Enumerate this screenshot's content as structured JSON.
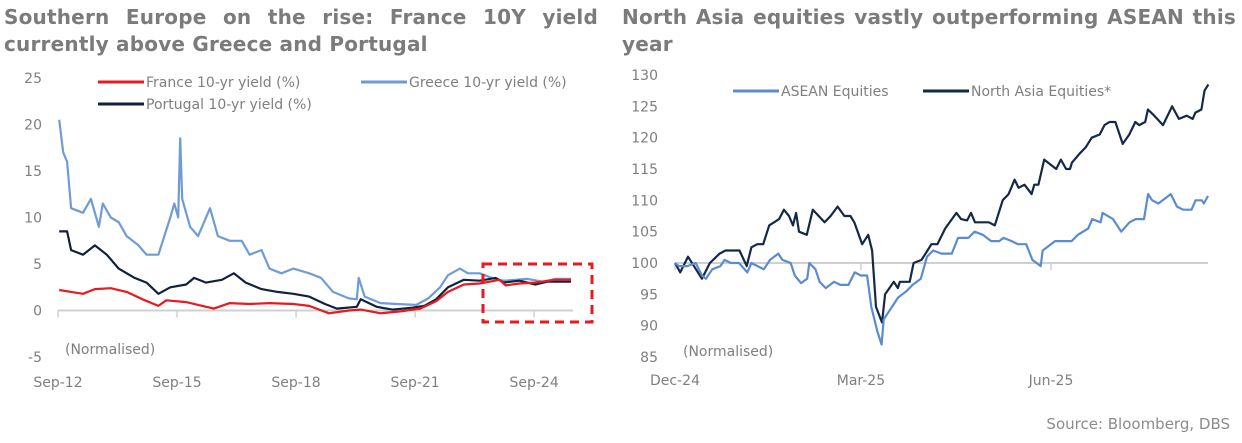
{
  "source": "Source: Bloomberg, DBS",
  "chart_data": [
    {
      "type": "line",
      "title": "Southern Europe on the rise: France 10Y yield currently above Greece and Portugal",
      "annotation": "(Normalised)",
      "highlight": "dashed red box around Sep-23 to latest",
      "ylim": [
        -5,
        25
      ],
      "yticks": [
        -5,
        0,
        5,
        10,
        15,
        20,
        25
      ],
      "xlim": [
        2012.67,
        2025.65
      ],
      "xticks": [
        {
          "v": 2012.67,
          "label": "Sep-12"
        },
        {
          "v": 2015.67,
          "label": "Sep-15"
        },
        {
          "v": 2018.67,
          "label": "Sep-18"
        },
        {
          "v": 2021.67,
          "label": "Sep-21"
        },
        {
          "v": 2024.67,
          "label": "Sep-24"
        }
      ],
      "legend_position": "top",
      "series": [
        {
          "name": "France 10-yr yield (%)",
          "color": "#e8191f",
          "x": [
            2012.7,
            2013.0,
            2013.3,
            2013.6,
            2014.0,
            2014.4,
            2014.8,
            2015.2,
            2015.4,
            2015.9,
            2016.2,
            2016.6,
            2017.0,
            2017.5,
            2018.0,
            2018.6,
            2019.0,
            2019.5,
            2020.0,
            2020.3,
            2020.8,
            2021.3,
            2021.8,
            2022.2,
            2022.5,
            2022.9,
            2023.3,
            2023.8,
            2023.95,
            2024.3,
            2024.7,
            2025.2,
            2025.6
          ],
          "y": [
            2.2,
            2.0,
            1.8,
            2.3,
            2.4,
            2.0,
            1.2,
            0.5,
            1.1,
            0.9,
            0.6,
            0.2,
            0.8,
            0.7,
            0.8,
            0.7,
            0.5,
            -0.3,
            0.0,
            0.1,
            -0.3,
            -0.1,
            0.2,
            1.0,
            2.0,
            2.8,
            2.9,
            3.3,
            2.7,
            2.9,
            3.0,
            3.3,
            3.3
          ]
        },
        {
          "name": "Greece 10-yr yield (%)",
          "color": "#6f9bd6",
          "x": [
            2012.7,
            2012.8,
            2012.9,
            2013.0,
            2013.3,
            2013.5,
            2013.7,
            2013.8,
            2014.0,
            2014.2,
            2014.4,
            2014.7,
            2014.9,
            2015.2,
            2015.5,
            2015.6,
            2015.7,
            2015.75,
            2015.8,
            2016.0,
            2016.2,
            2016.5,
            2016.7,
            2017.0,
            2017.3,
            2017.5,
            2017.8,
            2018.0,
            2018.3,
            2018.6,
            2019.0,
            2019.3,
            2019.6,
            2020.0,
            2020.2,
            2020.25,
            2020.4,
            2020.8,
            2021.2,
            2021.7,
            2022.0,
            2022.3,
            2022.5,
            2022.8,
            2023.0,
            2023.3,
            2023.6,
            2023.9,
            2024.2,
            2024.5,
            2024.9,
            2025.2,
            2025.6
          ],
          "y": [
            20.5,
            17,
            16,
            11,
            10.5,
            12,
            9,
            11.5,
            10,
            9.5,
            8,
            7,
            6,
            6,
            10,
            11.5,
            10,
            18.5,
            12,
            9,
            8,
            11,
            8,
            7.5,
            7.5,
            6,
            6.5,
            4.5,
            4,
            4.5,
            4,
            3.5,
            2,
            1.3,
            1.2,
            3.5,
            1.5,
            0.8,
            0.7,
            0.6,
            1.3,
            2.5,
            3.8,
            4.5,
            4,
            4,
            3.5,
            3.2,
            3.3,
            3.4,
            3.1,
            3.4,
            3.4
          ]
        },
        {
          "name": "Portugal 10-yr yield (%)",
          "color": "#14213d",
          "x": [
            2012.7,
            2012.9,
            2013.0,
            2013.3,
            2013.6,
            2013.9,
            2014.2,
            2014.6,
            2014.9,
            2015.2,
            2015.5,
            2015.9,
            2016.1,
            2016.4,
            2016.8,
            2017.1,
            2017.4,
            2017.8,
            2018.2,
            2018.6,
            2019.0,
            2019.4,
            2019.7,
            2020.2,
            2020.3,
            2020.7,
            2021.1,
            2021.6,
            2021.9,
            2022.2,
            2022.5,
            2022.9,
            2023.3,
            2023.7,
            2023.9,
            2024.3,
            2024.7,
            2025.0,
            2025.6
          ],
          "y": [
            8.5,
            8.5,
            6.5,
            6,
            7,
            6,
            4.5,
            3.5,
            3,
            1.8,
            2.5,
            2.8,
            3.5,
            3,
            3.3,
            4,
            3,
            2.3,
            2,
            1.8,
            1.5,
            0.7,
            0.2,
            0.4,
            1.2,
            0.4,
            0.1,
            0.3,
            0.5,
            1.2,
            2.5,
            3.3,
            3.2,
            3.5,
            3,
            3.2,
            2.8,
            3.1,
            3.1
          ]
        }
      ]
    },
    {
      "type": "line",
      "title": "North Asia equities vastly outperforming ASEAN this year",
      "annotation": "(Normalised)",
      "ylim": [
        85,
        130
      ],
      "yticks": [
        85,
        90,
        95,
        100,
        105,
        110,
        115,
        120,
        125,
        130
      ],
      "x_unit": "days since 1-Dec-24",
      "xlim": [
        0,
        258
      ],
      "xticks": [
        {
          "v": 0,
          "label": "Dec-24"
        },
        {
          "v": 90,
          "label": "Mar-25"
        },
        {
          "v": 182,
          "label": "Jun-25"
        }
      ],
      "legend_position": "top",
      "series": [
        {
          "name": "ASEAN Equities",
          "color": "#5b8ccf",
          "x": [
            0,
            2,
            6,
            10,
            13,
            15,
            18,
            22,
            24,
            27,
            31,
            35,
            37,
            40,
            43,
            46,
            50,
            52,
            56,
            58,
            61,
            64,
            65,
            68,
            70,
            73,
            77,
            80,
            84,
            87,
            90,
            93,
            95,
            98,
            100,
            101,
            104,
            108,
            112,
            115,
            119,
            122,
            125,
            129,
            134,
            137,
            142,
            145,
            149,
            153,
            157,
            159,
            163,
            166,
            170,
            173,
            177,
            178,
            182,
            184,
            192,
            195,
            200,
            202,
            206,
            207,
            212,
            216,
            220,
            223,
            227,
            229,
            231,
            234,
            238,
            240,
            243,
            246,
            250,
            252,
            255,
            256,
            258
          ],
          "y": [
            100,
            99.5,
            99.5,
            100,
            98,
            97.5,
            99,
            99.5,
            100.5,
            100,
            100,
            98.5,
            100,
            99.5,
            99,
            100.5,
            101.5,
            100.5,
            100,
            98,
            96.8,
            97.5,
            100,
            99,
            97,
            96,
            97,
            96.5,
            96.5,
            98.5,
            98,
            98,
            93,
            89,
            87,
            91,
            92.5,
            94.5,
            95.5,
            96.5,
            97.5,
            101,
            102,
            101.5,
            101.5,
            104,
            104,
            105,
            104.5,
            103.5,
            103.5,
            104,
            103.5,
            103,
            103,
            100.5,
            99.5,
            102,
            103,
            103.5,
            103.5,
            104.5,
            105.5,
            107,
            106.5,
            108,
            107,
            105,
            106.5,
            107,
            107,
            111,
            110,
            109.5,
            110.5,
            111,
            109,
            108.5,
            108.5,
            110,
            110,
            109.5,
            110.7
          ]
        },
        {
          "name": "North Asia Equities*",
          "color": "#14294a",
          "x": [
            0,
            2.5,
            6.3,
            13,
            16.9,
            21.6,
            24.5,
            31.2,
            34.7,
            37,
            39.8,
            42.7,
            45.6,
            50.4,
            52.7,
            55.2,
            57.1,
            58.6,
            60,
            63.8,
            66.7,
            72.4,
            75.3,
            78.7,
            82,
            84.9,
            86.8,
            90.6,
            93.5,
            95.4,
            97.3,
            100.2,
            101.7,
            105.9,
            107.9,
            108.8,
            113.6,
            115.5,
            119.3,
            122.2,
            124.1,
            127,
            130.8,
            136.2,
            138.5,
            141.4,
            143.3,
            145.2,
            151.9,
            154.8,
            158.6,
            161.5,
            164.4,
            166.3,
            169.2,
            172.6,
            173.9,
            175.9,
            178.7,
            184.5,
            186.8,
            189.3,
            191.2,
            192.1,
            196,
            198.9,
            201.7,
            205.6,
            207.9,
            210.3,
            213.2,
            216.7,
            219.9,
            222.8,
            224.7,
            227.6,
            228.9,
            232,
            236.2,
            240.6,
            243.9,
            247.7,
            250.6,
            251.9,
            254.8,
            256.3,
            258.2
          ],
          "y": [
            100,
            98.5,
            101,
            97.5,
            100,
            101.5,
            102,
            102,
            99.5,
            102.5,
            103,
            103,
            106,
            107,
            108.5,
            107.5,
            106,
            108,
            105,
            104.5,
            108.5,
            106.5,
            107.5,
            109,
            107.5,
            107.5,
            106.5,
            103,
            104.5,
            102,
            93,
            90.5,
            95,
            97,
            96,
            97,
            97,
            100,
            100.5,
            102,
            103,
            103,
            105.5,
            108,
            107,
            106.8,
            108,
            106.5,
            106.5,
            106,
            110,
            111,
            113.3,
            112,
            112.5,
            111,
            112.5,
            112.5,
            116.5,
            115,
            116.5,
            115,
            115,
            116,
            117.5,
            118.5,
            120,
            120.5,
            122,
            122.5,
            122.5,
            119,
            120.5,
            122.5,
            122,
            122.5,
            124.5,
            123.5,
            122,
            125,
            123,
            123.5,
            123,
            124,
            124.5,
            127.5,
            128.5
          ]
        }
      ]
    }
  ]
}
